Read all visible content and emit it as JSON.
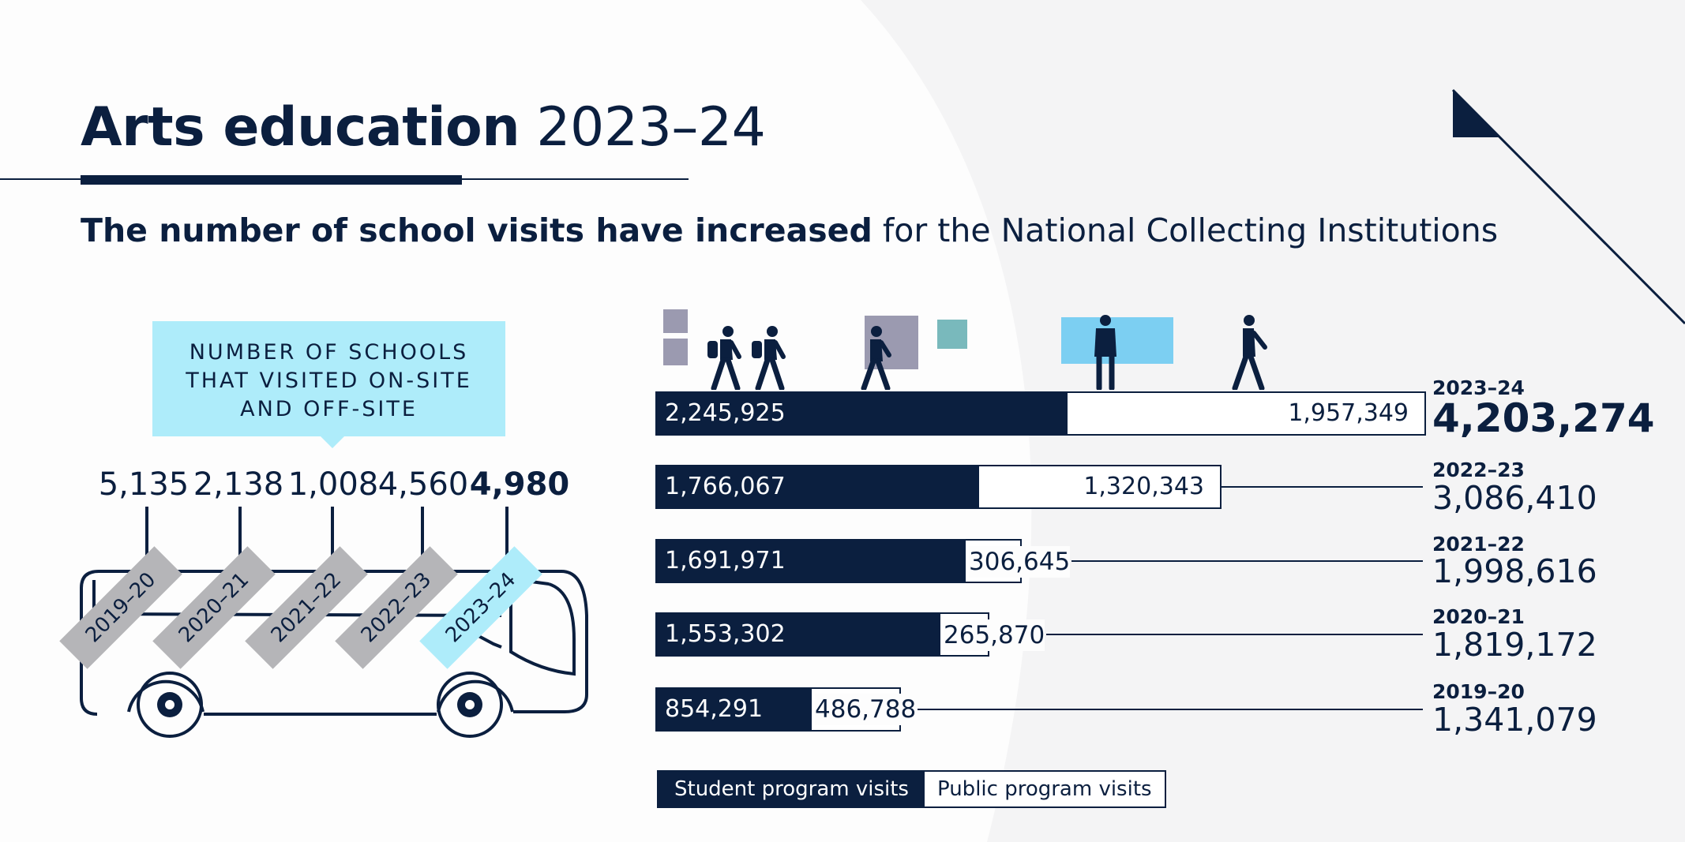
{
  "header": {
    "title_bold": "Arts education",
    "title_year": "2023–24",
    "subtitle_bold": "The number of school visits have increased",
    "subtitle_rest": " for the National Collecting Institutions"
  },
  "colors": {
    "navy": "#0b1f3f",
    "light_blue": "#aeecfa",
    "sky_blue": "#7ccff2",
    "grey": "#b5b5b8",
    "lavender": "#9b9ab0",
    "teal": "#79b9bc"
  },
  "icons": [
    "student-walking-icon",
    "person-walking-icon",
    "person-standing-icon",
    "bus-icon",
    "pennant-icon"
  ],
  "chart_data": [
    {
      "type": "bar",
      "title": "NUMBER OF SCHOOLS THAT VISITED ON-SITE AND OFF-SITE",
      "title_lines": [
        "NUMBER OF SCHOOLS",
        "THAT VISITED ON-SITE",
        "AND OFF-SITE"
      ],
      "categories": [
        "2019–20",
        "2020–21",
        "2021–22",
        "2022–23",
        "2023–24"
      ],
      "values": [
        5135,
        2138,
        1008,
        4560,
        4980
      ],
      "value_labels": [
        "5,135",
        "2,138",
        "1,008",
        "4,560",
        "4,980"
      ],
      "highlight": "2023–24"
    },
    {
      "type": "bar",
      "orientation": "horizontal",
      "stacked": true,
      "categories": [
        "2023–24",
        "2022–23",
        "2021–22",
        "2020–21",
        "2019–20"
      ],
      "series": [
        {
          "name": "Student program visits",
          "values": [
            2245925,
            1766067,
            1691971,
            1553302,
            854291
          ],
          "labels": [
            "2,245,925",
            "1,766,067",
            "1,691,971",
            "1,553,302",
            "854,291"
          ]
        },
        {
          "name": "Public program visits",
          "values": [
            1957349,
            1320343,
            306645,
            265870,
            486788
          ],
          "labels": [
            "1,957,349",
            "1,320,343",
            "306,645",
            "265,870",
            "486,788"
          ]
        }
      ],
      "totals": [
        4203274,
        3086410,
        1998616,
        1819172,
        1341079
      ],
      "total_labels": [
        "4,203,274",
        "3,086,410",
        "1,998,616",
        "1,819,172",
        "1,341,079"
      ],
      "xlim": [
        0,
        4203274
      ],
      "legend": {
        "position": "bottom-left",
        "items": [
          "Student program visits",
          "Public program visits"
        ]
      }
    }
  ]
}
